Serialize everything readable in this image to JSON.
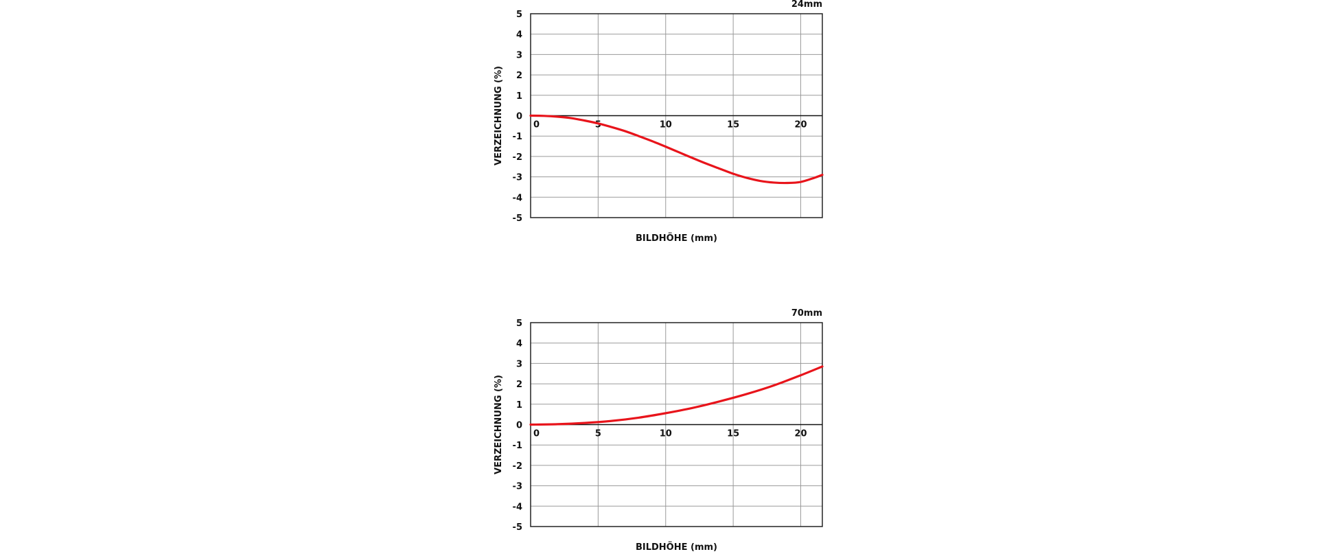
{
  "chart_data": [
    {
      "type": "line",
      "panel_label": "24mm",
      "xlabel": "BILDHÖHE (mm)",
      "ylabel": "VERZEICHNUNG (%)",
      "xlim": [
        0,
        21.6
      ],
      "ylim": [
        -5,
        5
      ],
      "x_ticks": [
        0,
        5,
        10,
        15,
        20
      ],
      "y_ticks": [
        5,
        4,
        3,
        2,
        1,
        0,
        -1,
        -2,
        -3,
        -4,
        -5
      ],
      "grid": true,
      "series_color": "#e8141b",
      "series": [
        {
          "x": [
            0,
            1,
            2,
            3,
            4,
            5,
            6,
            7,
            8,
            9,
            10,
            11,
            12,
            13,
            14,
            15,
            16,
            17,
            18,
            19,
            20,
            21,
            21.6
          ],
          "y": [
            0,
            -0.01,
            -0.05,
            -0.12,
            -0.24,
            -0.38,
            -0.56,
            -0.76,
            -1.0,
            -1.25,
            -1.52,
            -1.8,
            -2.08,
            -2.35,
            -2.6,
            -2.85,
            -3.05,
            -3.2,
            -3.28,
            -3.3,
            -3.25,
            -3.05,
            -2.9
          ]
        }
      ]
    },
    {
      "type": "line",
      "panel_label": "70mm",
      "xlabel": "BILDHÖHE (mm)",
      "ylabel": "VERZEICHNUNG (%)",
      "xlim": [
        0,
        21.6
      ],
      "ylim": [
        -5,
        5
      ],
      "x_ticks": [
        0,
        5,
        10,
        15,
        20
      ],
      "y_ticks": [
        5,
        4,
        3,
        2,
        1,
        0,
        -1,
        -2,
        -3,
        -4,
        -5
      ],
      "grid": true,
      "series_color": "#e8141b",
      "series": [
        {
          "x": [
            0,
            2,
            4,
            6,
            8,
            10,
            12,
            14,
            16,
            18,
            20,
            21.6
          ],
          "y": [
            0,
            0.02,
            0.08,
            0.18,
            0.34,
            0.56,
            0.82,
            1.14,
            1.5,
            1.92,
            2.42,
            2.85
          ]
        }
      ]
    }
  ]
}
